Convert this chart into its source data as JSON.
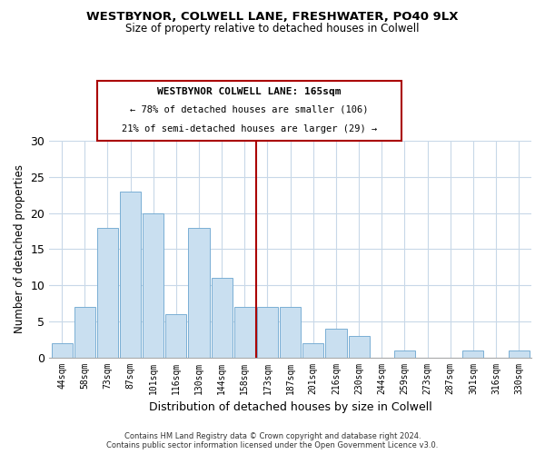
{
  "title": "WESTBYNOR, COLWELL LANE, FRESHWATER, PO40 9LX",
  "subtitle": "Size of property relative to detached houses in Colwell",
  "xlabel": "Distribution of detached houses by size in Colwell",
  "ylabel": "Number of detached properties",
  "bar_labels": [
    "44sqm",
    "58sqm",
    "73sqm",
    "87sqm",
    "101sqm",
    "116sqm",
    "130sqm",
    "144sqm",
    "158sqm",
    "173sqm",
    "187sqm",
    "201sqm",
    "216sqm",
    "230sqm",
    "244sqm",
    "259sqm",
    "273sqm",
    "287sqm",
    "301sqm",
    "316sqm",
    "330sqm"
  ],
  "bar_values": [
    2,
    7,
    18,
    23,
    20,
    6,
    18,
    11,
    7,
    7,
    7,
    2,
    4,
    3,
    0,
    1,
    0,
    0,
    1,
    0,
    1
  ],
  "bar_color": "#c9dff0",
  "bar_edge_color": "#7aafd4",
  "vline_x_index": 8.5,
  "vline_color": "#aa0000",
  "ylim": [
    0,
    30
  ],
  "yticks": [
    0,
    5,
    10,
    15,
    20,
    25,
    30
  ],
  "annotation_title": "WESTBYNOR COLWELL LANE: 165sqm",
  "annotation_line1": "← 78% of detached houses are smaller (106)",
  "annotation_line2": "21% of semi-detached houses are larger (29) →",
  "annotation_box_color": "#ffffff",
  "annotation_box_edge": "#aa0000",
  "footer_line1": "Contains HM Land Registry data © Crown copyright and database right 2024.",
  "footer_line2": "Contains public sector information licensed under the Open Government Licence v3.0.",
  "background_color": "#ffffff",
  "grid_color": "#c8d8e8"
}
